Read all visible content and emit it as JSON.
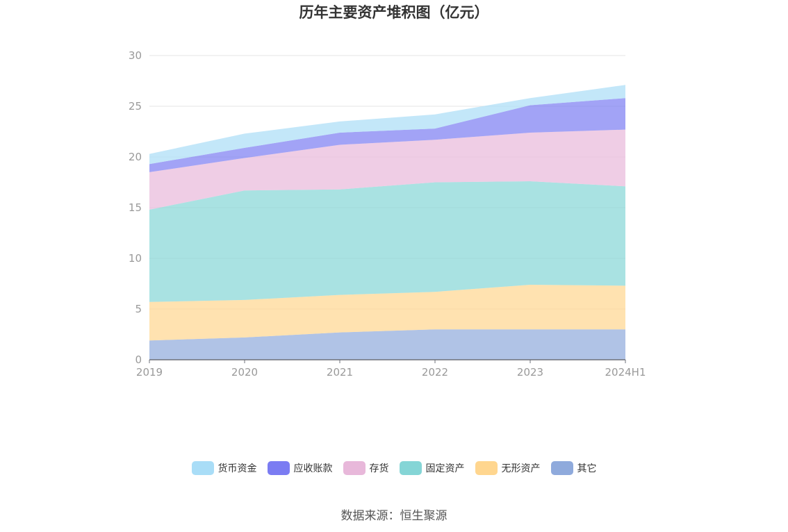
{
  "title": "历年主要资产堆积图（亿元）",
  "source": "数据来源：恒生聚源",
  "chart_data": {
    "type": "area",
    "stacked": true,
    "title": "历年主要资产堆积图（亿元）",
    "xlabel": "",
    "ylabel": "",
    "categories": [
      "2019",
      "2020",
      "2021",
      "2022",
      "2023",
      "2024H1"
    ],
    "ylim": [
      0,
      30
    ],
    "yticks": [
      "0",
      "5",
      "10",
      "15",
      "20",
      "25",
      "30"
    ],
    "grid": true,
    "legend_position": "bottom",
    "series": [
      {
        "name": "其它",
        "color": "#8FAADC",
        "values": [
          1.9,
          2.2,
          2.7,
          3.0,
          3.0,
          3.0
        ]
      },
      {
        "name": "无形资产",
        "color": "#FFD68F",
        "values": [
          3.8,
          3.7,
          3.7,
          3.7,
          4.4,
          4.3
        ]
      },
      {
        "name": "固定资产",
        "color": "#85D5D6",
        "values": [
          9.1,
          10.8,
          10.4,
          10.8,
          10.2,
          9.8
        ]
      },
      {
        "name": "存货",
        "color": "#E8B8DA",
        "values": [
          3.7,
          3.2,
          4.4,
          4.2,
          4.8,
          5.6
        ]
      },
      {
        "name": "应收账款",
        "color": "#7B7CF2",
        "values": [
          0.8,
          1.0,
          1.2,
          1.1,
          2.7,
          3.1
        ]
      },
      {
        "name": "货币资金",
        "color": "#A9DDF7",
        "values": [
          1.0,
          1.4,
          1.1,
          1.4,
          0.7,
          1.3
        ]
      }
    ]
  }
}
